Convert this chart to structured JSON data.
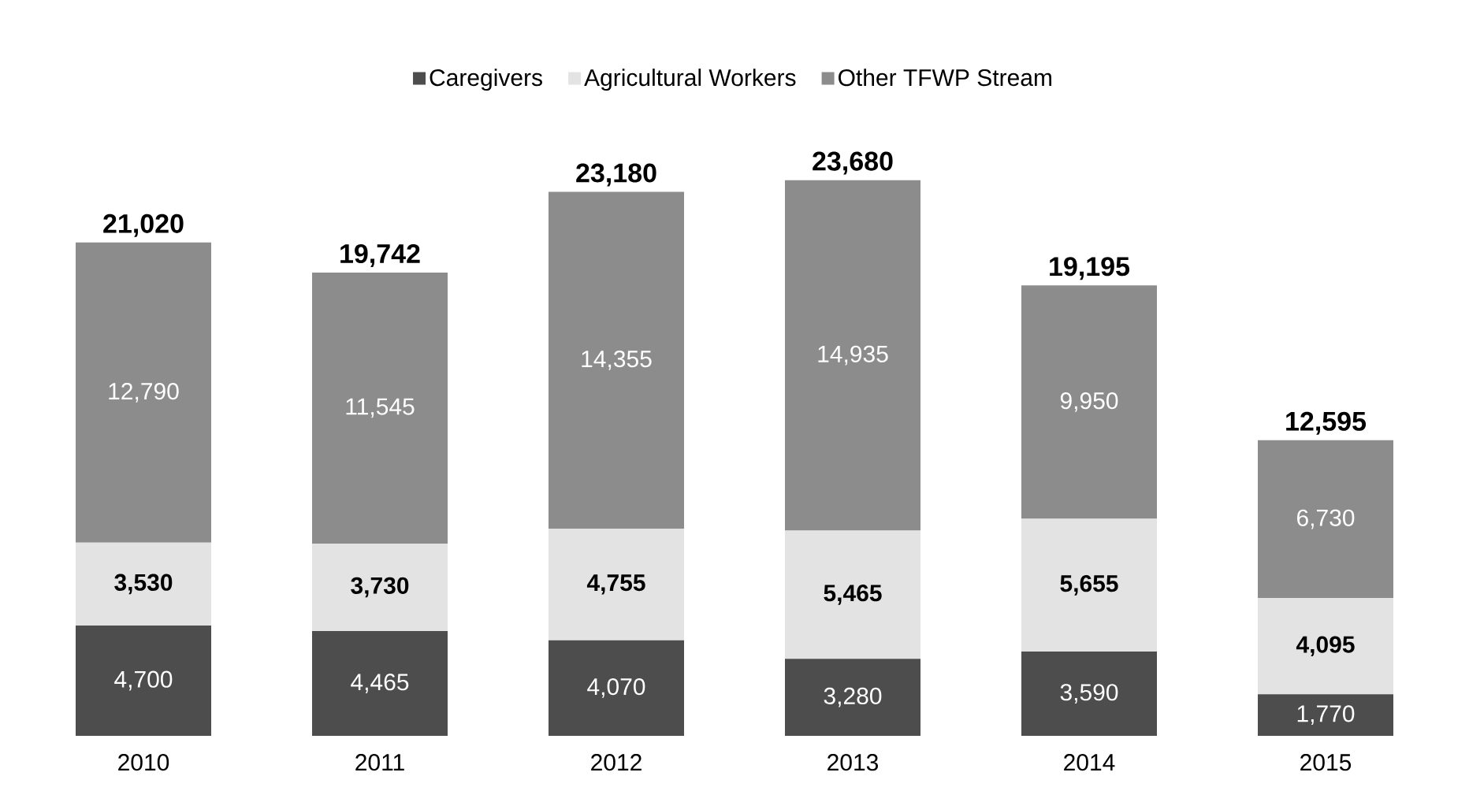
{
  "chart_data": {
    "type": "bar",
    "stacked": true,
    "categories": [
      "2010",
      "2011",
      "2012",
      "2013",
      "2014",
      "2015"
    ],
    "series": [
      {
        "name": "Caregivers",
        "color": "#4d4d4d",
        "values": [
          4700,
          4465,
          4070,
          3280,
          3590,
          1770
        ],
        "value_labels": [
          "4,700",
          "4,465",
          "4,070",
          "3,280",
          "3,590",
          "1,770"
        ]
      },
      {
        "name": "Agricultural Workers",
        "color": "#e3e3e3",
        "values": [
          3530,
          3730,
          4755,
          5465,
          5655,
          4095
        ],
        "value_labels": [
          "3,530",
          "3,730",
          "4,755",
          "5,465",
          "5,655",
          "4,095"
        ]
      },
      {
        "name": "Other TFWP Stream",
        "color": "#8c8c8c",
        "values": [
          12790,
          11545,
          14355,
          14935,
          9950,
          6730
        ],
        "value_labels": [
          "12,790",
          "11,545",
          "14,355",
          "14,935",
          "9,950",
          "6,730"
        ]
      }
    ],
    "totals": [
      "21,020",
      "19,742",
      "23,180",
      "23,680",
      "19,195",
      "12,595"
    ],
    "legend": "top"
  }
}
